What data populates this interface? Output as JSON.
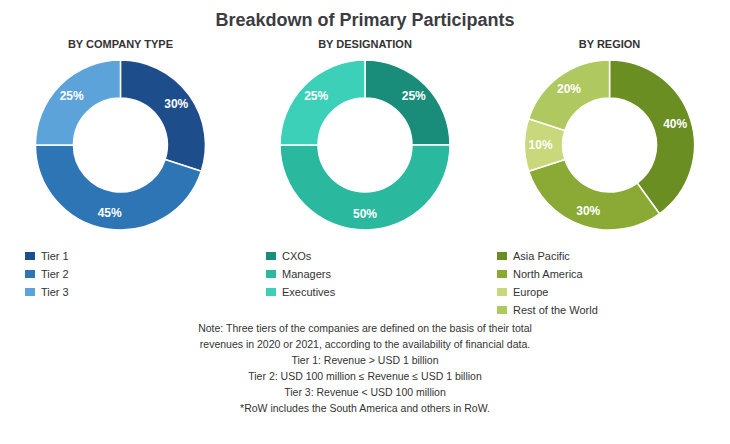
{
  "title": "Breakdown of Primary Participants",
  "annotations": [
    "Note: Three tiers of the companies are defined on the basis of their total",
    "revenues in 2020 or 2021, according to the availability of financial data.",
    "Tier 1: Revenue > USD 1 billion",
    "Tier 2: USD 100 million ≤ Revenue ≤ USD 1 billion",
    "Tier 3: Revenue < USD 100 million",
    "*RoW includes the South America and others in RoW."
  ],
  "chart_data": [
    {
      "type": "pie",
      "subtitle": "BY COMPANY TYPE",
      "categories": [
        "Tier 1",
        "Tier 2",
        "Tier 3"
      ],
      "values": [
        30,
        45,
        25
      ],
      "value_labels": [
        "30%",
        "45%",
        "25%"
      ],
      "colors": [
        "#1e4d8c",
        "#2e75b6",
        "#5ba3d9"
      ],
      "data_labels": true,
      "legend": "bottom"
    },
    {
      "type": "pie",
      "subtitle": "BY DESIGNATION",
      "categories": [
        "CXOs",
        "Managers",
        "Executives"
      ],
      "values": [
        25,
        50,
        25
      ],
      "value_labels": [
        "25%",
        "50%",
        "25%"
      ],
      "colors": [
        "#1a8c7a",
        "#2ab89e",
        "#3dd0b8"
      ],
      "data_labels": true,
      "legend": "bottom"
    },
    {
      "type": "pie",
      "subtitle": "BY REGION",
      "categories": [
        "Asia Pacific",
        "North America",
        "Europe",
        "Rest of the World"
      ],
      "values": [
        40,
        30,
        10,
        20
      ],
      "value_labels": [
        "40%",
        "30%",
        "10%",
        "20%"
      ],
      "colors": [
        "#6b8e23",
        "#8aaa35",
        "#c8d87a",
        "#b0c860"
      ],
      "data_labels": true,
      "legend": "bottom"
    }
  ]
}
